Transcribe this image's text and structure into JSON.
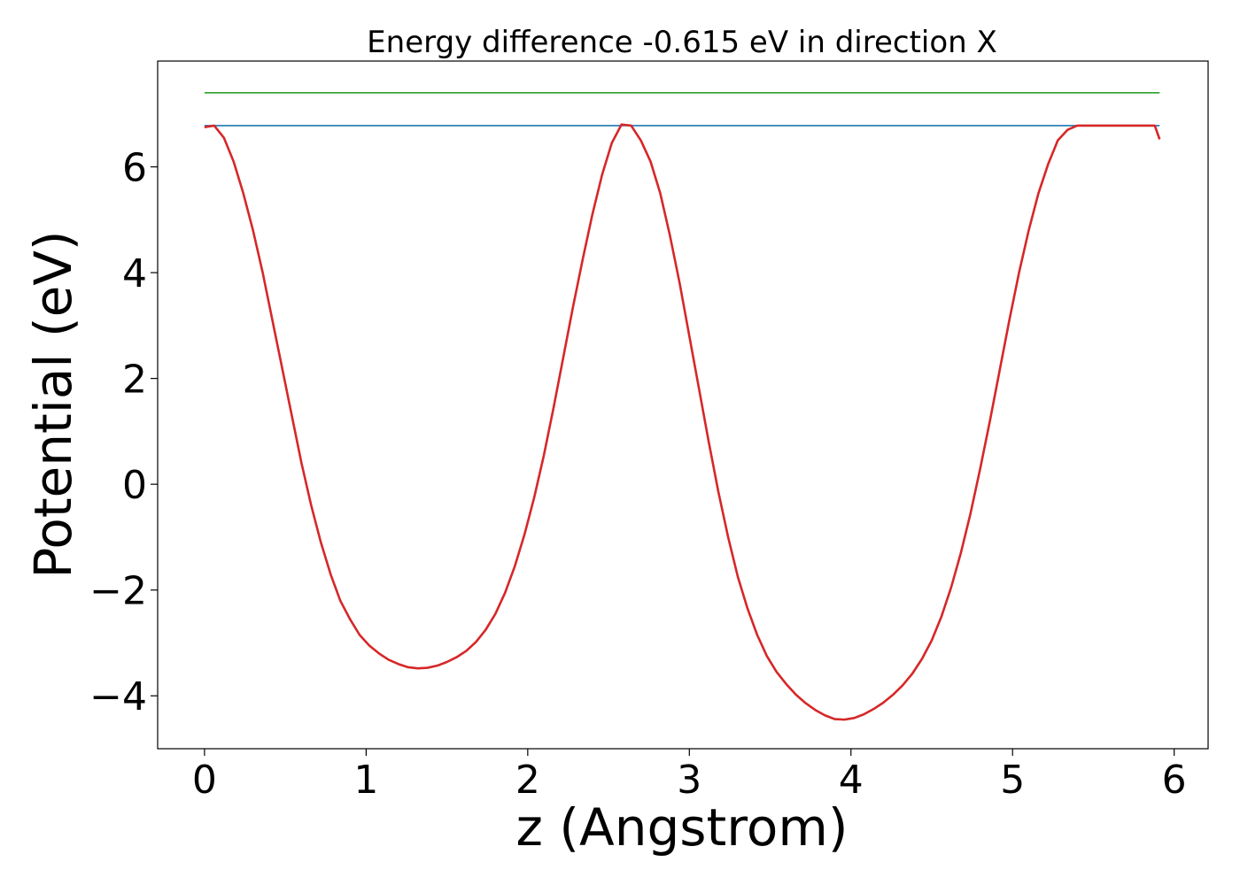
{
  "chart_data": {
    "type": "line",
    "title": "Energy difference -0.615 eV in direction X",
    "xlabel": "z (Angstrom)",
    "ylabel": "Potential (eV)",
    "xlim": [
      -0.29,
      6.21
    ],
    "ylim": [
      -5.0,
      8.0
    ],
    "xticks": [
      0,
      1,
      2,
      3,
      4,
      5,
      6
    ],
    "xtick_labels": [
      "0",
      "1",
      "2",
      "3",
      "4",
      "5",
      "6"
    ],
    "yticks": [
      -4,
      -2,
      0,
      2,
      4,
      6
    ],
    "ytick_labels": [
      "−4",
      "−2",
      "0",
      "2",
      "4",
      "6"
    ],
    "grid": false,
    "series": [
      {
        "color": "#d62728",
        "x": [
          0.0,
          0.06,
          0.12,
          0.18,
          0.24,
          0.3,
          0.36,
          0.42,
          0.48,
          0.54,
          0.6,
          0.66,
          0.72,
          0.78,
          0.84,
          0.9,
          0.96,
          1.02,
          1.08,
          1.14,
          1.2,
          1.26,
          1.32,
          1.38,
          1.44,
          1.5,
          1.56,
          1.62,
          1.68,
          1.74,
          1.8,
          1.86,
          1.92,
          1.98,
          2.04,
          2.1,
          2.16,
          2.22,
          2.28,
          2.34,
          2.4,
          2.46,
          2.52,
          2.58,
          2.64,
          2.7,
          2.76,
          2.82,
          2.88,
          2.94,
          3.0,
          3.06,
          3.12,
          3.18,
          3.24,
          3.3,
          3.36,
          3.42,
          3.48,
          3.54,
          3.6,
          3.66,
          3.72,
          3.78,
          3.84,
          3.9,
          3.96,
          4.02,
          4.08,
          4.14,
          4.2,
          4.26,
          4.32,
          4.38,
          4.44,
          4.5,
          4.56,
          4.62,
          4.68,
          4.74,
          4.8,
          4.86,
          4.92,
          4.98,
          5.04,
          5.1,
          5.16,
          5.22,
          5.28,
          5.34,
          5.4,
          5.46,
          5.52,
          5.58,
          5.64,
          5.7,
          5.76,
          5.82,
          5.88,
          5.91
        ],
        "y": [
          6.75,
          6.78,
          6.55,
          6.1,
          5.5,
          4.8,
          4.0,
          3.1,
          2.2,
          1.3,
          0.4,
          -0.4,
          -1.1,
          -1.7,
          -2.2,
          -2.55,
          -2.85,
          -3.05,
          -3.2,
          -3.32,
          -3.4,
          -3.46,
          -3.48,
          -3.47,
          -3.43,
          -3.36,
          -3.27,
          -3.15,
          -2.98,
          -2.75,
          -2.45,
          -2.05,
          -1.55,
          -0.95,
          -0.25,
          0.55,
          1.45,
          2.4,
          3.35,
          4.25,
          5.1,
          5.85,
          6.45,
          6.8,
          6.78,
          6.5,
          6.1,
          5.5,
          4.7,
          3.8,
          2.8,
          1.8,
          0.8,
          -0.15,
          -1.0,
          -1.75,
          -2.35,
          -2.85,
          -3.25,
          -3.55,
          -3.78,
          -3.98,
          -4.14,
          -4.27,
          -4.37,
          -4.44,
          -4.45,
          -4.42,
          -4.35,
          -4.25,
          -4.13,
          -3.98,
          -3.8,
          -3.58,
          -3.3,
          -2.95,
          -2.5,
          -1.95,
          -1.3,
          -0.55,
          0.3,
          1.2,
          2.15,
          3.1,
          4.0,
          4.8,
          5.5,
          6.05,
          6.5,
          6.7,
          6.78,
          6.78,
          6.78,
          6.78,
          6.78,
          6.78,
          6.78,
          6.78,
          6.78,
          6.52
        ]
      },
      {
        "color": "#1f77b4",
        "x": [
          0.0,
          5.91
        ],
        "y": [
          6.78,
          6.78
        ]
      },
      {
        "color": "#2ca02c",
        "x": [
          0.0,
          5.91
        ],
        "y": [
          7.4,
          7.4
        ]
      }
    ]
  }
}
